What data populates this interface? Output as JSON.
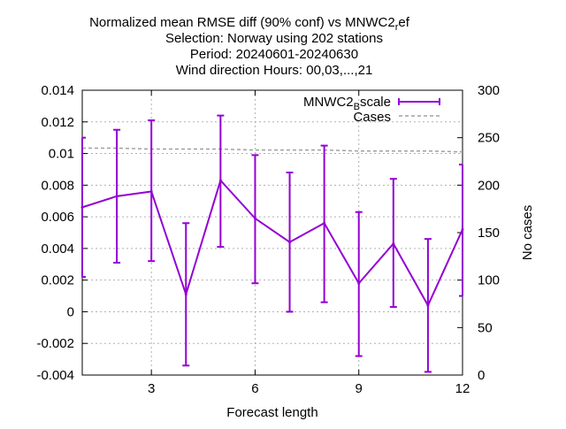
{
  "chart_data": {
    "type": "line",
    "title_lines": [
      "Normalized mean RMSE diff (90% conf) vs MNWC2ref",
      "Selection: Norway using   202 stations",
      "Period: 20240601-20240630",
      "Wind direction   Hours: 00,03,...,21"
    ],
    "xlabel": "Forecast length",
    "ylabel": "",
    "y2label": "No cases",
    "xlim": [
      1,
      12
    ],
    "ylim": [
      -0.004,
      0.014
    ],
    "y2lim": [
      0,
      300
    ],
    "x_ticks": [
      "3",
      "6",
      "9",
      "12"
    ],
    "y_ticks": [
      "0.014",
      "0.012",
      "0.01",
      "0.008",
      "0.006",
      "0.004",
      "0.002",
      "0",
      "-0.002",
      "-0.004"
    ],
    "y2_ticks": [
      "300",
      "250",
      "200",
      "150",
      "100",
      "50",
      "0"
    ],
    "grid": true,
    "legend_position": "top-right",
    "series": [
      {
        "name": "MNWC2Bscale",
        "color": "#9400d3",
        "x": [
          1,
          2,
          3,
          4,
          5,
          6,
          7,
          8,
          9,
          10,
          11,
          12
        ],
        "values": [
          0.0066,
          0.0073,
          0.0076,
          0.0011,
          0.0083,
          0.0059,
          0.0044,
          0.0056,
          0.0018,
          0.0043,
          0.0004,
          0.0052
        ],
        "err_low": [
          0.0022,
          0.0031,
          0.0032,
          -0.0034,
          0.0041,
          0.0018,
          0.0,
          0.0006,
          -0.0028,
          0.0003,
          -0.0038,
          0.001
        ],
        "err_high": [
          0.011,
          0.0115,
          0.0121,
          0.0056,
          0.0124,
          0.0099,
          0.0088,
          0.0105,
          0.0063,
          0.0084,
          0.0046,
          0.0093
        ]
      },
      {
        "name": "Cases",
        "color": "#a0a0a0",
        "axis": "right",
        "x": [
          1,
          2,
          3,
          4,
          5,
          6,
          7,
          8,
          9,
          10,
          11,
          12
        ],
        "values": [
          239,
          239,
          238,
          238,
          238,
          237,
          237,
          237,
          236,
          236,
          236,
          235
        ]
      }
    ]
  }
}
